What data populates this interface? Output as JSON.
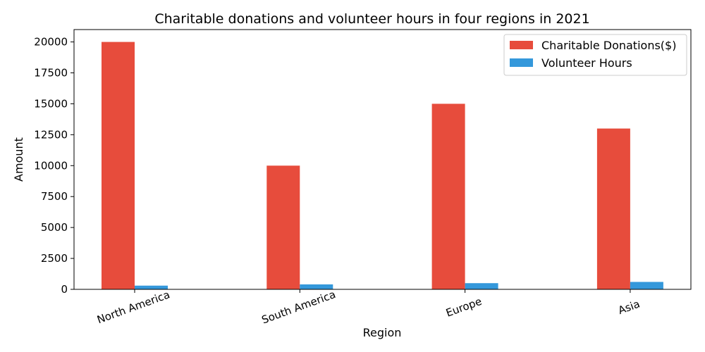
{
  "chart_data": {
    "type": "bar",
    "title": "Charitable donations and volunteer hours in four regions in 2021",
    "xlabel": "Region",
    "ylabel": "Amount",
    "categories": [
      "North America",
      "South America",
      "Europe",
      "Asia"
    ],
    "series": [
      {
        "name": "Charitable Donations($)",
        "values": [
          20000,
          10000,
          15000,
          13000
        ],
        "color": "#e74c3c"
      },
      {
        "name": "Volunteer Hours",
        "values": [
          300,
          400,
          500,
          600
        ],
        "color": "#3498db"
      }
    ],
    "ylim": [
      0,
      21000
    ],
    "yticks": [
      0,
      2500,
      5000,
      7500,
      10000,
      12500,
      15000,
      17500,
      20000
    ],
    "grid": false,
    "legend_position": "top-right"
  }
}
